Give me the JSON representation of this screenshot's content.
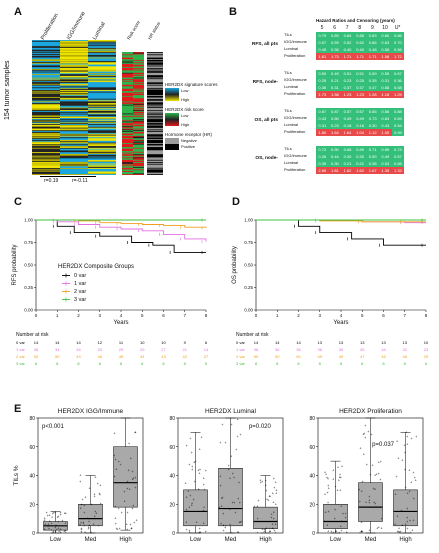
{
  "panels": {
    "A": "A",
    "B": "B",
    "C": "C",
    "D": "D",
    "E": "E"
  },
  "panelA": {
    "columns": [
      "Proliferation",
      "IGG/Immune",
      "Luminal"
    ],
    "side_columns": [
      "Risk score",
      "HR status"
    ],
    "ylabel": "154 tumor samples",
    "r_labels": [
      "r=0.19",
      "r=-0.11"
    ],
    "legend": {
      "sig_title": "HER2DX signature scores",
      "sig_low": "Low",
      "sig_high": "High",
      "risk_title": "HER2DX risk score",
      "risk_low": "Low",
      "risk_high": "High",
      "hr_title": "Hormone receptor (HR)",
      "hr_neg": "Negative",
      "hr_pos": "Positive",
      "colors": {
        "low": "#1aa7e0",
        "mid": "#222222",
        "high": "#f2e600",
        "risk_low": "#2cb34a",
        "risk_high": "#e0181b",
        "hr_neg": "#9c9c9c",
        "hr_pos": "#000000"
      }
    }
  },
  "panelB": {
    "title": "Hazard Ratios and Censoring (years)",
    "years": [
      "5",
      "6",
      "7",
      "8",
      "9",
      "10",
      "U*"
    ],
    "groups": [
      {
        "label": "RFS, all pts",
        "rows": [
          {
            "name": "TILs",
            "vals": [
              "0.79",
              "0.89",
              "0.84",
              "0.86",
              "0.83",
              "0.80",
              "0.86"
            ],
            "colors": [
              "g",
              "g",
              "g",
              "g",
              "g",
              "g",
              "g"
            ]
          },
          {
            "name": "IGG/Immune",
            "vals": [
              "0.67",
              "0.59",
              "0.52",
              "0.52",
              "0.66",
              "0.63",
              "0.70"
            ],
            "colors": [
              "g",
              "g",
              "g",
              "g",
              "g",
              "g",
              "g"
            ]
          },
          {
            "name": "Luminal",
            "vals": [
              "0.45",
              "0.36",
              "0.40",
              "0.40",
              "0.48",
              "0.58",
              "0.56"
            ],
            "colors": [
              "g",
              "g",
              "g",
              "g",
              "g",
              "g",
              "g"
            ]
          },
          {
            "name": "Proliferation",
            "vals": [
              "1.61",
              "1.73",
              "1.71",
              "1.71",
              "1.71",
              "1.58",
              "1.72"
            ],
            "colors": [
              "r",
              "r",
              "r",
              "r",
              "r",
              "r",
              "r"
            ]
          }
        ]
      },
      {
        "label": "RFS, node-",
        "rows": [
          {
            "name": "TILs",
            "vals": [
              "0.59",
              "0.49",
              "0.51",
              "0.51",
              "0.59",
              "0.55",
              "0.67"
            ],
            "colors": [
              "g",
              "g",
              "g",
              "g",
              "g",
              "g",
              "g"
            ]
          },
          {
            "name": "IGG/Immune",
            "vals": [
              "0.25",
              "0.21",
              "0.23",
              "0.25",
              "0.35",
              "0.31",
              "0.36"
            ],
            "colors": [
              "g",
              "g",
              "g",
              "g",
              "g",
              "g",
              "g"
            ]
          },
          {
            "name": "Luminal",
            "vals": [
              "0.36",
              "0.31",
              "0.37",
              "0.37",
              "0.47",
              "0.58",
              "0.58"
            ],
            "colors": [
              "g",
              "g",
              "g",
              "g",
              "g",
              "g",
              "g"
            ]
          },
          {
            "name": "Proliferation",
            "vals": [
              "1.73",
              "1.58",
              "1.23",
              "1.23",
              "1.28",
              "1.18",
              "1.29"
            ],
            "colors": [
              "r",
              "r",
              "r",
              "r",
              "r",
              "r",
              "r"
            ]
          }
        ]
      },
      {
        "label": "OS, all pts",
        "rows": [
          {
            "name": "TILs",
            "vals": [
              "0.87",
              "0.87",
              "0.57",
              "0.57",
              "0.65",
              "0.56",
              "0.88"
            ],
            "colors": [
              "g",
              "g",
              "g",
              "g",
              "g",
              "g",
              "g"
            ]
          },
          {
            "name": "IGG/Immune",
            "vals": [
              "0.43",
              "0.50",
              "0.49",
              "0.49",
              "0.73",
              "0.63",
              "0.69"
            ],
            "colors": [
              "g",
              "g",
              "g",
              "g",
              "g",
              "g",
              "g"
            ]
          },
          {
            "name": "Luminal",
            "vals": [
              "0.31",
              "0.23",
              "0.18",
              "0.16",
              "0.30",
              "0.43",
              "0.54"
            ],
            "colors": [
              "g",
              "g",
              "g",
              "g",
              "g",
              "g",
              "g"
            ]
          },
          {
            "name": "Proliferation",
            "vals": [
              "1.80",
              "1.64",
              "1.64",
              "1.04",
              "1.12",
              "1.05",
              "0.99"
            ],
            "colors": [
              "r",
              "r",
              "r",
              "r",
              "r",
              "r",
              "g"
            ]
          }
        ]
      },
      {
        "label": "OS, node-",
        "rows": [
          {
            "name": "TILs",
            "vals": [
              "0.72",
              "0.90",
              "0.68",
              "0.59",
              "0.71",
              "0.59",
              "0.74"
            ],
            "colors": [
              "g",
              "g",
              "g",
              "g",
              "g",
              "g",
              "g"
            ]
          },
          {
            "name": "IGG/Immune",
            "vals": [
              "0.26",
              "0.44",
              "0.30",
              "0.30",
              "0.59",
              "0.49",
              "0.57"
            ],
            "colors": [
              "g",
              "g",
              "g",
              "g",
              "g",
              "g",
              "g"
            ]
          },
          {
            "name": "Luminal",
            "vals": [
              "0.39",
              "0.30",
              "0.21",
              "0.21",
              "0.38",
              "0.53",
              "0.66"
            ],
            "colors": [
              "g",
              "g",
              "g",
              "g",
              "g",
              "g",
              "g"
            ]
          },
          {
            "name": "Proliferation",
            "vals": [
              "2.89",
              "1.81",
              "1.62",
              "1.62",
              "1.67",
              "1.35",
              "1.33"
            ],
            "colors": [
              "r",
              "r",
              "r",
              "r",
              "r",
              "r",
              "r"
            ]
          }
        ]
      }
    ],
    "green": "#34c07a",
    "red": "#e84a4a"
  },
  "panelC": {
    "ylabel": "RFS probability",
    "xlabel": "Years",
    "yticks": [
      "0.00",
      "0.25",
      "0.50",
      "0.75",
      "1.00"
    ],
    "xticks": [
      "0",
      "1",
      "2",
      "3",
      "4",
      "5",
      "6",
      "7",
      "8"
    ],
    "legend_title": "HER2DX Composite Groups",
    "legend": [
      "0 var",
      "1 var",
      "2 var",
      "3 var"
    ],
    "risk_title": "Number at risk",
    "risk_rows": [
      {
        "name": "0 var",
        "vals": [
          "14",
          "14",
          "14",
          "12",
          "11",
          "10",
          "10",
          "9",
          "6"
        ]
      },
      {
        "name": "1 var",
        "vals": [
          "36",
          "34",
          "34",
          "33",
          "29",
          "29",
          "27",
          "21",
          "14"
        ]
      },
      {
        "name": "2 var",
        "vals": [
          "50",
          "50",
          "49",
          "46",
          "46",
          "44",
          "43",
          "42",
          "27"
        ]
      },
      {
        "name": "3 var",
        "vals": [
          "8",
          "8",
          "8",
          "8",
          "8",
          "8",
          "8",
          "8",
          "5"
        ]
      }
    ]
  },
  "panelD": {
    "ylabel": "OS probability",
    "xlabel": "Years",
    "yticks": [
      "0.00",
      "0.25",
      "0.50",
      "0.75",
      "1.00"
    ],
    "xticks": [
      "0",
      "1",
      "2",
      "3",
      "4",
      "5",
      "6",
      "7",
      "8"
    ],
    "risk_title": "Number at risk",
    "risk_rows": [
      {
        "name": "0 var",
        "vals": [
          "14",
          "14",
          "14",
          "13",
          "13",
          "13",
          "13",
          "13",
          "10"
        ]
      },
      {
        "name": "1 var",
        "vals": [
          "36",
          "36",
          "36",
          "36",
          "35",
          "35",
          "34",
          "32",
          "23"
        ]
      },
      {
        "name": "2 var",
        "vals": [
          "50",
          "50",
          "50",
          "49",
          "49",
          "47",
          "46",
          "46",
          "29"
        ]
      },
      {
        "name": "3 var",
        "vals": [
          "8",
          "8",
          "8",
          "8",
          "8",
          "8",
          "8",
          "8",
          "6"
        ]
      }
    ]
  },
  "colors": {
    "var0": "#000000",
    "var1": "#e26ee0",
    "var2": "#f0a020",
    "var3": "#3fbf3f"
  },
  "chart_data": [
    {
      "type": "line",
      "title": "",
      "xlabel": "Years",
      "ylabel": "RFS probability",
      "ylim": [
        0,
        1
      ],
      "xlim": [
        0,
        8
      ],
      "series": [
        {
          "name": "0 var",
          "x": [
            0,
            1,
            1.8,
            3,
            4.5,
            5.5,
            6.5,
            8
          ],
          "y": [
            1,
            0.93,
            0.86,
            0.82,
            0.75,
            0.72,
            0.64,
            0.64
          ]
        },
        {
          "name": "1 var",
          "x": [
            0,
            1,
            2,
            3,
            4,
            5,
            6,
            7,
            8
          ],
          "y": [
            1,
            0.98,
            0.95,
            0.92,
            0.9,
            0.88,
            0.84,
            0.79,
            0.76
          ]
        },
        {
          "name": "2 var",
          "x": [
            0,
            1,
            2,
            3,
            4,
            5,
            6,
            7,
            8
          ],
          "y": [
            1,
            1,
            0.99,
            0.97,
            0.96,
            0.95,
            0.94,
            0.92,
            0.91
          ]
        },
        {
          "name": "3 var",
          "x": [
            0,
            8
          ],
          "y": [
            1,
            1
          ]
        }
      ]
    },
    {
      "type": "line",
      "title": "",
      "xlabel": "Years",
      "ylabel": "OS probability",
      "ylim": [
        0,
        1
      ],
      "xlim": [
        0,
        8
      ],
      "series": [
        {
          "name": "0 var",
          "x": [
            0,
            2,
            3,
            4.5,
            6,
            8
          ],
          "y": [
            1,
            0.93,
            0.86,
            0.79,
            0.72,
            0.72
          ]
        },
        {
          "name": "1 var",
          "x": [
            0,
            3,
            5,
            7,
            8
          ],
          "y": [
            1,
            1,
            0.98,
            0.97,
            0.97
          ]
        },
        {
          "name": "2 var",
          "x": [
            0,
            3,
            5,
            7,
            8
          ],
          "y": [
            1,
            0.99,
            0.98,
            0.98,
            0.98
          ]
        },
        {
          "name": "3 var",
          "x": [
            0,
            8
          ],
          "y": [
            1,
            1
          ]
        }
      ]
    },
    {
      "type": "scatter",
      "title": "HER2DX IGG/Immune",
      "ylabel": "TILs %",
      "categories": [
        "Low",
        "Med",
        "High"
      ],
      "ylim": [
        0,
        80
      ],
      "annotation": "p<0.001",
      "boxes": [
        {
          "q1": 2,
          "median": 5,
          "q3": 8,
          "lo": 0,
          "hi": 15
        },
        {
          "q1": 5,
          "median": 10,
          "q3": 20,
          "lo": 0,
          "hi": 40
        },
        {
          "q1": 18,
          "median": 35,
          "q3": 60,
          "lo": 2,
          "hi": 80
        }
      ]
    },
    {
      "type": "scatter",
      "title": "HER2DX Luminal",
      "ylabel": "",
      "categories": [
        "Low",
        "Med",
        "High"
      ],
      "ylim": [
        0,
        80
      ],
      "annotation": "p=0.020",
      "boxes": [
        {
          "q1": 5,
          "median": 15,
          "q3": 30,
          "lo": 0,
          "hi": 70
        },
        {
          "q1": 5,
          "median": 17,
          "q3": 45,
          "lo": 0,
          "hi": 80
        },
        {
          "q1": 3,
          "median": 8,
          "q3": 18,
          "lo": 0,
          "hi": 40
        }
      ]
    },
    {
      "type": "scatter",
      "title": "HER2DX Proliferation",
      "ylabel": "",
      "categories": [
        "Low",
        "Med",
        "High"
      ],
      "ylim": [
        0,
        80
      ],
      "annotation": "p=0.037",
      "boxes": [
        {
          "q1": 3,
          "median": 8,
          "q3": 20,
          "lo": 0,
          "hi": 50
        },
        {
          "q1": 8,
          "median": 18,
          "q3": 35,
          "lo": 0,
          "hi": 80
        },
        {
          "q1": 5,
          "median": 15,
          "q3": 30,
          "lo": 0,
          "hi": 70
        }
      ]
    }
  ],
  "panelE": {
    "ylabel": "TILs %",
    "yticks": [
      "0",
      "20",
      "40",
      "60",
      "80"
    ],
    "titles": [
      "HER2DX IGG/Immune",
      "HER2DX Luminal",
      "HER2DX Proliferation"
    ],
    "pvals": [
      "p<0.001",
      "p=0.020",
      "p=0.037"
    ],
    "categories": [
      "Low",
      "Med",
      "High"
    ]
  }
}
